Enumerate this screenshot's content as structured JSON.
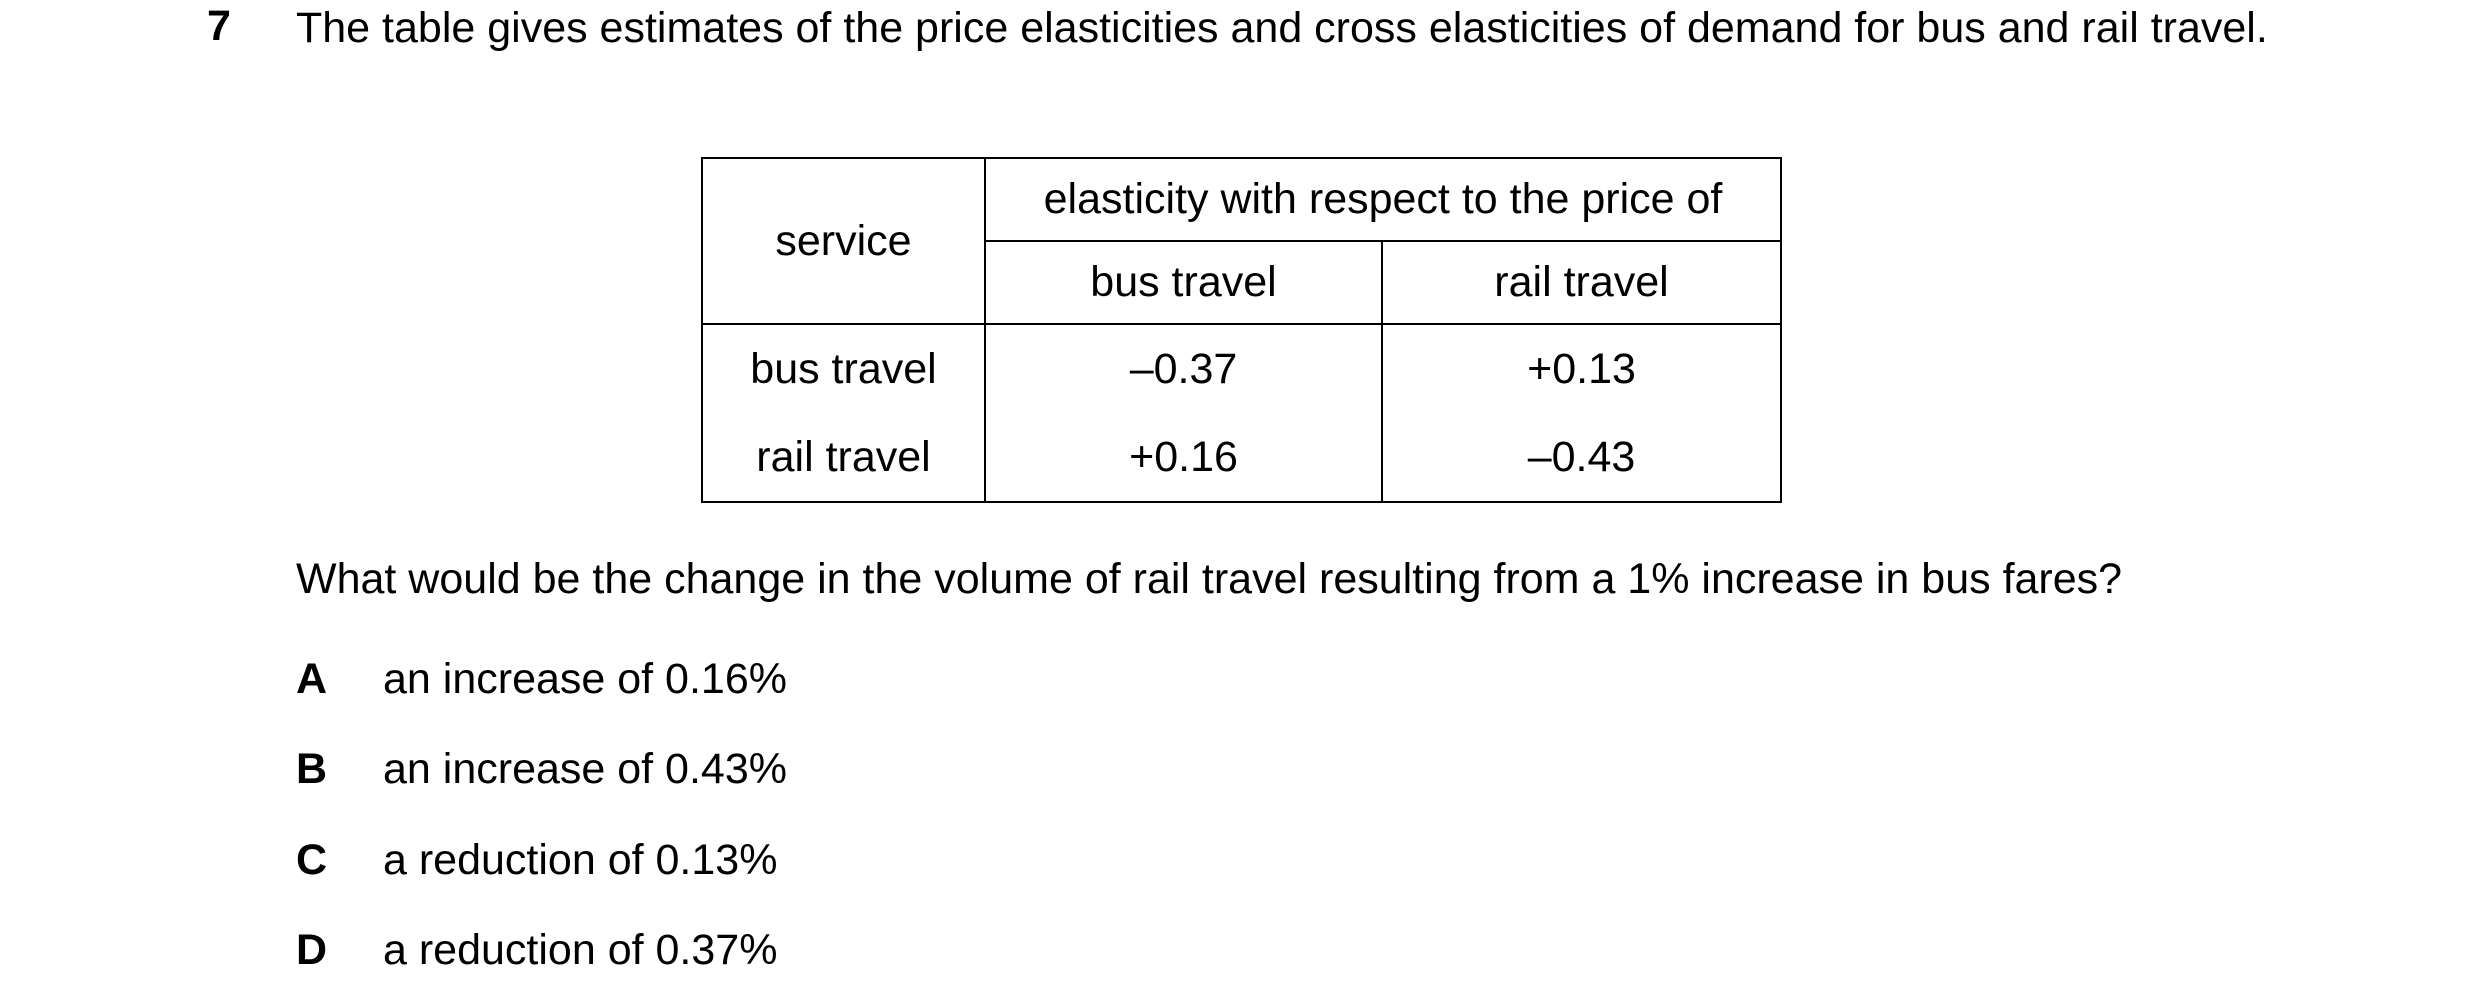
{
  "question": {
    "number": "7",
    "intro": "The table gives estimates of the price elasticities and cross elasticities of demand for bus and rail travel.",
    "table": {
      "row_header": "service",
      "group_header": "elasticity with respect to the price of",
      "columns": [
        "bus travel",
        "rail travel"
      ],
      "rows": [
        [
          "bus travel",
          "–0.37",
          "+0.13"
        ],
        [
          "rail travel",
          "+0.16",
          "–0.43"
        ]
      ]
    },
    "prompt": "What would be the change in the volume of rail travel resulting from a 1% increase in bus fares?",
    "options": [
      {
        "letter": "A",
        "text": "an increase of 0.16%"
      },
      {
        "letter": "B",
        "text": "an increase of 0.43%"
      },
      {
        "letter": "C",
        "text": "a reduction of 0.13%"
      },
      {
        "letter": "D",
        "text": "a reduction of 0.37%"
      }
    ]
  }
}
